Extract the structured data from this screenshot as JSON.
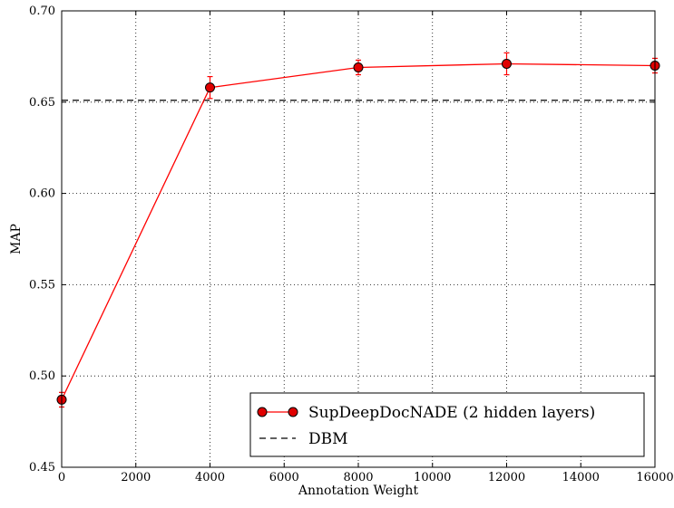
{
  "chart_data": {
    "type": "line",
    "xlabel": "Annotation Weight",
    "ylabel": "MAP",
    "xlim": [
      0,
      16000
    ],
    "ylim": [
      0.45,
      0.7
    ],
    "xticks": [
      0,
      2000,
      4000,
      6000,
      8000,
      10000,
      12000,
      14000,
      16000
    ],
    "yticks": [
      0.45,
      0.5,
      0.55,
      0.6,
      0.65,
      0.7
    ],
    "xtick_labels": [
      "0",
      "2000",
      "4000",
      "6000",
      "8000",
      "10000",
      "12000",
      "14000",
      "16000"
    ],
    "ytick_labels": [
      "0.45",
      "0.50",
      "0.55",
      "0.60",
      "0.65",
      "0.70"
    ],
    "grid": true,
    "legend_position": "lower-right",
    "series": [
      {
        "name": "SupDeepDocNADE (2 hidden layers)",
        "color": "#ff0000",
        "marker": "circle",
        "x": [
          0,
          4000,
          8000,
          12000,
          16000
        ],
        "y": [
          0.487,
          0.658,
          0.669,
          0.671,
          0.67
        ],
        "yerr": [
          0.004,
          0.006,
          0.004,
          0.006,
          0.004
        ]
      },
      {
        "name": "DBM",
        "color": "#000000",
        "style": "dashed",
        "y": 0.651
      }
    ]
  }
}
